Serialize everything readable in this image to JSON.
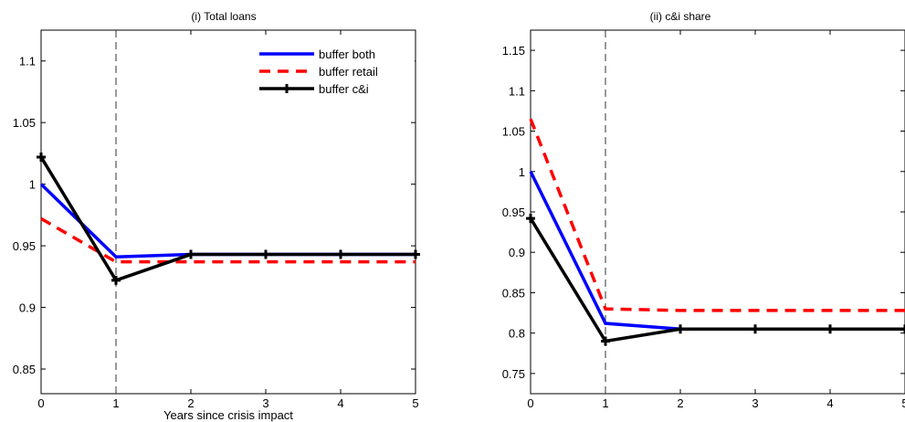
{
  "chart_data": [
    {
      "type": "line",
      "title": "(i) Total loans",
      "xlabel": "Years since crisis impact",
      "ylabel": "",
      "xlim": [
        0,
        5
      ],
      "ylim": [
        0.83,
        1.125
      ],
      "xticks": [
        "0",
        "1",
        "2",
        "3",
        "4",
        "5"
      ],
      "yticks": [
        "0.85",
        "0.9",
        "0.95",
        "1",
        "1.05",
        "1.1"
      ],
      "grid": false,
      "legend": "top-right",
      "vline_x": 1,
      "x": [
        0,
        1,
        2,
        3,
        4,
        5
      ],
      "series": [
        {
          "name": "buffer both",
          "color": "#0000ff",
          "style": "solid",
          "marker": "none",
          "values": [
            1.0,
            0.941,
            0.943,
            0.943,
            0.943,
            0.943
          ]
        },
        {
          "name": "buffer retail",
          "color": "#ff0000",
          "style": "dashed",
          "marker": "none",
          "values": [
            0.972,
            0.937,
            0.937,
            0.937,
            0.937,
            0.937
          ]
        },
        {
          "name": "buffer c&i",
          "color": "#000000",
          "style": "solid",
          "marker": "plus",
          "values": [
            1.022,
            0.922,
            0.943,
            0.943,
            0.943,
            0.943
          ]
        }
      ]
    },
    {
      "type": "line",
      "title": "(ii) c&i share",
      "xlabel": "",
      "ylabel": "",
      "xlim": [
        0,
        5
      ],
      "ylim": [
        0.725,
        1.175
      ],
      "xticks": [
        "0",
        "1",
        "2",
        "3",
        "4",
        "5"
      ],
      "yticks": [
        "0.75",
        "0.8",
        "0.85",
        "0.9",
        "0.95",
        "1",
        "1.05",
        "1.1",
        "1.15"
      ],
      "grid": false,
      "legend": "none",
      "vline_x": 1,
      "x": [
        0,
        1,
        2,
        3,
        4,
        5
      ],
      "series": [
        {
          "name": "buffer both",
          "color": "#0000ff",
          "style": "solid",
          "marker": "none",
          "values": [
            1.0,
            0.812,
            0.805,
            0.805,
            0.805,
            0.805
          ]
        },
        {
          "name": "buffer retail",
          "color": "#ff0000",
          "style": "dashed",
          "marker": "none",
          "values": [
            1.065,
            0.83,
            0.828,
            0.828,
            0.828,
            0.828
          ]
        },
        {
          "name": "buffer c&i",
          "color": "#000000",
          "style": "solid",
          "marker": "plus",
          "values": [
            0.942,
            0.79,
            0.805,
            0.805,
            0.805,
            0.805
          ]
        }
      ]
    }
  ]
}
